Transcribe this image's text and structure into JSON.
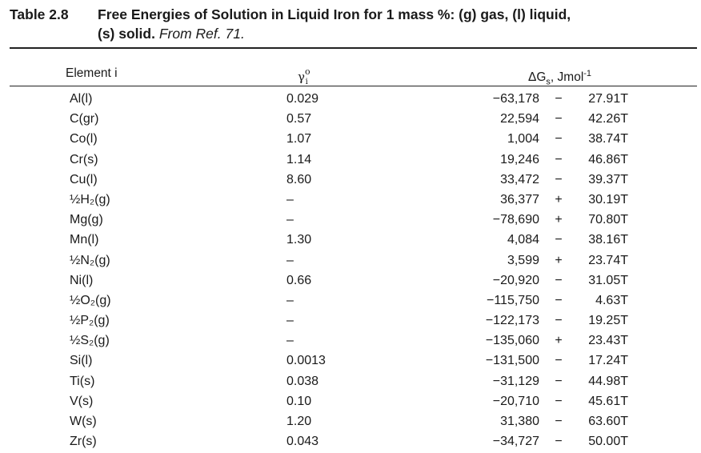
{
  "caption": {
    "number": "Table 2.8",
    "title_line1": "Free Energies of Solution in Liquid Iron for 1 mass %: (g) gas, (l) liquid,",
    "title_line2": "(s) solid.",
    "reference": "From Ref. 71."
  },
  "headers": {
    "element": "Element i",
    "gamma_symbol": "γ",
    "gamma_sup": "o",
    "gamma_sub": "i",
    "dg_prefix": "ΔG",
    "dg_sub": "s",
    "dg_unit": ", Jmol",
    "dg_unit_sup": "-1"
  },
  "rows": [
    {
      "element": "Al(l)",
      "gamma": "0.029",
      "a": "−63,178",
      "op": "−",
      "b": "27.91T"
    },
    {
      "element": "C(gr)",
      "gamma": "0.57",
      "a": "22,594",
      "op": "−",
      "b": "42.26T"
    },
    {
      "element": "Co(l)",
      "gamma": "1.07",
      "a": "1,004",
      "op": "−",
      "b": "38.74T"
    },
    {
      "element": "Cr(s)",
      "gamma": "1.14",
      "a": "19,246",
      "op": "−",
      "b": "46.86T"
    },
    {
      "element": "Cu(l)",
      "gamma": "8.60",
      "a": "33,472",
      "op": "−",
      "b": "39.37T"
    },
    {
      "element": "½H₂(g)",
      "gamma": "–",
      "a": "36,377",
      "op": "+",
      "b": "30.19T"
    },
    {
      "element": "Mg(g)",
      "gamma": "–",
      "a": "−78,690",
      "op": "+",
      "b": "70.80T"
    },
    {
      "element": "Mn(l)",
      "gamma": "1.30",
      "a": "4,084",
      "op": "−",
      "b": "38.16T"
    },
    {
      "element": "½N₂(g)",
      "gamma": "–",
      "a": "3,599",
      "op": "+",
      "b": "23.74T"
    },
    {
      "element": "Ni(l)",
      "gamma": "0.66",
      "a": "−20,920",
      "op": "−",
      "b": "31.05T"
    },
    {
      "element": "½O₂(g)",
      "gamma": "–",
      "a": "−115,750",
      "op": "−",
      "b": "4.63T"
    },
    {
      "element": "½P₂(g)",
      "gamma": "–",
      "a": "−122,173",
      "op": "−",
      "b": "19.25T"
    },
    {
      "element": "½S₂(g)",
      "gamma": "–",
      "a": "−135,060",
      "op": "+",
      "b": "23.43T"
    },
    {
      "element": "Si(l)",
      "gamma": "0.0013",
      "a": "−131,500",
      "op": "−",
      "b": "17.24T"
    },
    {
      "element": "Ti(s)",
      "gamma": "0.038",
      "a": "−31,129",
      "op": "−",
      "b": "44.98T"
    },
    {
      "element": "V(s)",
      "gamma": "0.10",
      "a": "−20,710",
      "op": "−",
      "b": "45.61T"
    },
    {
      "element": "W(s)",
      "gamma": "1.20",
      "a": "31,380",
      "op": "−",
      "b": "63.60T"
    },
    {
      "element": "Zr(s)",
      "gamma": "0.043",
      "a": "−34,727",
      "op": "−",
      "b": "50.00T"
    }
  ]
}
